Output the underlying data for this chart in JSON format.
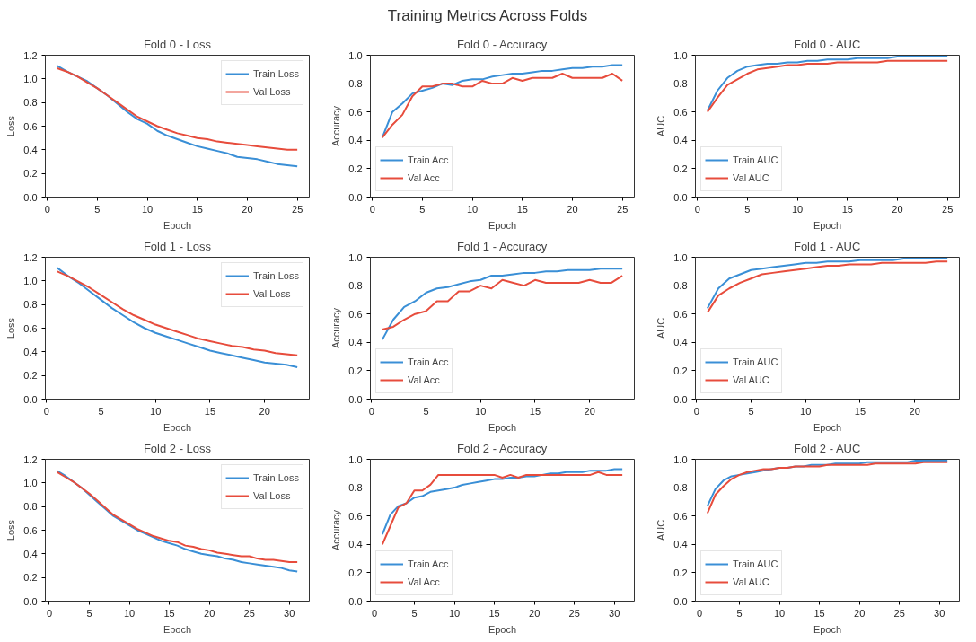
{
  "chart_data": [
    {
      "type": "other",
      "title": "Training Metrics Across Folds"
    },
    {
      "type": "line",
      "title": "Fold 0 - Loss",
      "xlabel": "Epoch",
      "ylabel": "Loss",
      "legend": "top right",
      "x": [
        1,
        2,
        3,
        4,
        5,
        6,
        7,
        8,
        9,
        10,
        11,
        12,
        13,
        14,
        15,
        16,
        17,
        18,
        19,
        20,
        21,
        22,
        23,
        24,
        25
      ],
      "xlim": [
        -0.2,
        26.2
      ],
      "xticks": [
        0,
        5,
        10,
        15,
        20,
        25
      ],
      "ylim": [
        0,
        1.2
      ],
      "yticks": [
        {
          "value": 0,
          "label": "0.0"
        },
        {
          "value": 0.2,
          "label": "0.2"
        },
        {
          "value": 0.4,
          "label": "0.4"
        },
        {
          "value": 0.6,
          "label": "0.6"
        },
        {
          "value": 0.8,
          "label": "0.8"
        },
        {
          "value": 1,
          "label": "1.0"
        },
        {
          "value": 1.2,
          "label": "1.2"
        }
      ],
      "series": [
        {
          "name": "Train Loss",
          "color": "#3a8fd6",
          "values": [
            1.11,
            1.06,
            1.02,
            0.98,
            0.92,
            0.86,
            0.79,
            0.72,
            0.66,
            0.62,
            0.56,
            0.52,
            0.49,
            0.46,
            0.43,
            0.41,
            0.39,
            0.37,
            0.34,
            0.33,
            0.32,
            0.3,
            0.28,
            0.27,
            0.26
          ]
        },
        {
          "name": "Val Loss",
          "color": "#e74c3c",
          "values": [
            1.09,
            1.06,
            1.02,
            0.97,
            0.92,
            0.86,
            0.8,
            0.74,
            0.68,
            0.64,
            0.6,
            0.57,
            0.54,
            0.52,
            0.5,
            0.49,
            0.47,
            0.46,
            0.45,
            0.44,
            0.43,
            0.42,
            0.41,
            0.4,
            0.4
          ]
        }
      ]
    },
    {
      "type": "line",
      "title": "Fold 0 - Accuracy",
      "xlabel": "Epoch",
      "ylabel": "Accuracy",
      "legend": "bottom left",
      "x": [
        1,
        2,
        3,
        4,
        5,
        6,
        7,
        8,
        9,
        10,
        11,
        12,
        13,
        14,
        15,
        16,
        17,
        18,
        19,
        20,
        21,
        22,
        23,
        24,
        25
      ],
      "xlim": [
        -0.2,
        26.2
      ],
      "xticks": [
        0,
        5,
        10,
        15,
        20,
        25
      ],
      "ylim": [
        0,
        1
      ],
      "yticks": [
        {
          "value": 0,
          "label": "0.0"
        },
        {
          "value": 0.2,
          "label": "0.2"
        },
        {
          "value": 0.4,
          "label": "0.4"
        },
        {
          "value": 0.6,
          "label": "0.6"
        },
        {
          "value": 0.8,
          "label": "0.8"
        },
        {
          "value": 1,
          "label": "1.0"
        }
      ],
      "series": [
        {
          "name": "Train Acc",
          "color": "#3a8fd6",
          "values": [
            0.42,
            0.6,
            0.66,
            0.73,
            0.75,
            0.77,
            0.8,
            0.79,
            0.82,
            0.83,
            0.83,
            0.85,
            0.86,
            0.87,
            0.87,
            0.88,
            0.89,
            0.89,
            0.9,
            0.91,
            0.91,
            0.92,
            0.92,
            0.93,
            0.93
          ]
        },
        {
          "name": "Val Acc",
          "color": "#e74c3c",
          "values": [
            0.42,
            0.51,
            0.58,
            0.71,
            0.78,
            0.78,
            0.8,
            0.8,
            0.78,
            0.78,
            0.82,
            0.8,
            0.8,
            0.84,
            0.82,
            0.84,
            0.84,
            0.84,
            0.87,
            0.84,
            0.84,
            0.84,
            0.84,
            0.87,
            0.82
          ]
        }
      ]
    },
    {
      "type": "line",
      "title": "Fold 0 - AUC",
      "xlabel": "Epoch",
      "ylabel": "AUC",
      "legend": "bottom left",
      "x": [
        1,
        2,
        3,
        4,
        5,
        6,
        7,
        8,
        9,
        10,
        11,
        12,
        13,
        14,
        15,
        16,
        17,
        18,
        19,
        20,
        21,
        22,
        23,
        24,
        25
      ],
      "xlim": [
        -0.2,
        26.2
      ],
      "xticks": [
        0,
        5,
        10,
        15,
        20,
        25
      ],
      "ylim": [
        0,
        1
      ],
      "yticks": [
        {
          "value": 0,
          "label": "0.0"
        },
        {
          "value": 0.2,
          "label": "0.2"
        },
        {
          "value": 0.4,
          "label": "0.4"
        },
        {
          "value": 0.6,
          "label": "0.6"
        },
        {
          "value": 0.8,
          "label": "0.8"
        },
        {
          "value": 1,
          "label": "1.0"
        }
      ],
      "series": [
        {
          "name": "Train AUC",
          "color": "#3a8fd6",
          "values": [
            0.61,
            0.75,
            0.84,
            0.89,
            0.92,
            0.93,
            0.94,
            0.94,
            0.95,
            0.95,
            0.96,
            0.96,
            0.97,
            0.97,
            0.97,
            0.98,
            0.98,
            0.98,
            0.98,
            0.99,
            0.99,
            0.99,
            0.99,
            0.99,
            0.99
          ]
        },
        {
          "name": "Val AUC",
          "color": "#e74c3c",
          "values": [
            0.6,
            0.7,
            0.79,
            0.83,
            0.87,
            0.9,
            0.91,
            0.92,
            0.93,
            0.93,
            0.94,
            0.94,
            0.94,
            0.95,
            0.95,
            0.95,
            0.95,
            0.95,
            0.96,
            0.96,
            0.96,
            0.96,
            0.96,
            0.96,
            0.96
          ]
        }
      ]
    },
    {
      "type": "line",
      "title": "Fold 1 - Loss",
      "xlabel": "Epoch",
      "ylabel": "Loss",
      "legend": "top right",
      "x": [
        1,
        2,
        3,
        4,
        5,
        6,
        7,
        8,
        9,
        10,
        11,
        12,
        13,
        14,
        15,
        16,
        17,
        18,
        19,
        20,
        21,
        22,
        23
      ],
      "xlim": [
        -0.1,
        24.1
      ],
      "xticks": [
        0,
        5,
        10,
        15,
        20
      ],
      "ylim": [
        0,
        1.2
      ],
      "yticks": [
        {
          "value": 0,
          "label": "0.0"
        },
        {
          "value": 0.2,
          "label": "0.2"
        },
        {
          "value": 0.4,
          "label": "0.4"
        },
        {
          "value": 0.6,
          "label": "0.6"
        },
        {
          "value": 0.8,
          "label": "0.8"
        },
        {
          "value": 1,
          "label": "1.0"
        },
        {
          "value": 1.2,
          "label": "1.2"
        }
      ],
      "series": [
        {
          "name": "Train Loss",
          "color": "#3a8fd6",
          "values": [
            1.11,
            1.04,
            0.98,
            0.91,
            0.84,
            0.77,
            0.71,
            0.65,
            0.6,
            0.56,
            0.53,
            0.5,
            0.47,
            0.44,
            0.41,
            0.39,
            0.37,
            0.35,
            0.33,
            0.31,
            0.3,
            0.29,
            0.27
          ]
        },
        {
          "name": "Val Loss",
          "color": "#e74c3c",
          "values": [
            1.08,
            1.04,
            0.99,
            0.94,
            0.88,
            0.82,
            0.76,
            0.71,
            0.67,
            0.63,
            0.6,
            0.57,
            0.54,
            0.51,
            0.49,
            0.47,
            0.45,
            0.44,
            0.42,
            0.41,
            0.39,
            0.38,
            0.37
          ]
        }
      ]
    },
    {
      "type": "line",
      "title": "Fold 1 - Accuracy",
      "xlabel": "Epoch",
      "ylabel": "Accuracy",
      "legend": "bottom left",
      "x": [
        1,
        2,
        3,
        4,
        5,
        6,
        7,
        8,
        9,
        10,
        11,
        12,
        13,
        14,
        15,
        16,
        17,
        18,
        19,
        20,
        21,
        22,
        23
      ],
      "xlim": [
        -0.1,
        24.1
      ],
      "xticks": [
        0,
        5,
        10,
        15,
        20
      ],
      "ylim": [
        0,
        1
      ],
      "yticks": [
        {
          "value": 0,
          "label": "0.0"
        },
        {
          "value": 0.2,
          "label": "0.2"
        },
        {
          "value": 0.4,
          "label": "0.4"
        },
        {
          "value": 0.6,
          "label": "0.6"
        },
        {
          "value": 0.8,
          "label": "0.8"
        },
        {
          "value": 1,
          "label": "1.0"
        }
      ],
      "series": [
        {
          "name": "Train Acc",
          "color": "#3a8fd6",
          "values": [
            0.42,
            0.56,
            0.65,
            0.69,
            0.75,
            0.78,
            0.79,
            0.81,
            0.83,
            0.84,
            0.87,
            0.87,
            0.88,
            0.89,
            0.89,
            0.9,
            0.9,
            0.91,
            0.91,
            0.91,
            0.92,
            0.92,
            0.92
          ]
        },
        {
          "name": "Val Acc",
          "color": "#e74c3c",
          "values": [
            0.49,
            0.51,
            0.56,
            0.6,
            0.62,
            0.69,
            0.69,
            0.76,
            0.76,
            0.8,
            0.78,
            0.84,
            0.82,
            0.8,
            0.84,
            0.82,
            0.82,
            0.82,
            0.82,
            0.84,
            0.82,
            0.82,
            0.87
          ]
        }
      ]
    },
    {
      "type": "line",
      "title": "Fold 1 - AUC",
      "xlabel": "Epoch",
      "ylabel": "AUC",
      "legend": "bottom left",
      "x": [
        1,
        2,
        3,
        4,
        5,
        6,
        7,
        8,
        9,
        10,
        11,
        12,
        13,
        14,
        15,
        16,
        17,
        18,
        19,
        20,
        21,
        22,
        23
      ],
      "xlim": [
        -0.1,
        24.1
      ],
      "xticks": [
        0,
        5,
        10,
        15,
        20
      ],
      "ylim": [
        0,
        1
      ],
      "yticks": [
        {
          "value": 0,
          "label": "0.0"
        },
        {
          "value": 0.2,
          "label": "0.2"
        },
        {
          "value": 0.4,
          "label": "0.4"
        },
        {
          "value": 0.6,
          "label": "0.6"
        },
        {
          "value": 0.8,
          "label": "0.8"
        },
        {
          "value": 1,
          "label": "1.0"
        }
      ],
      "series": [
        {
          "name": "Train AUC",
          "color": "#3a8fd6",
          "values": [
            0.64,
            0.78,
            0.85,
            0.88,
            0.91,
            0.92,
            0.93,
            0.94,
            0.95,
            0.96,
            0.96,
            0.97,
            0.97,
            0.97,
            0.98,
            0.98,
            0.98,
            0.98,
            0.99,
            0.99,
            0.99,
            0.99,
            0.99
          ]
        },
        {
          "name": "Val AUC",
          "color": "#e74c3c",
          "values": [
            0.61,
            0.73,
            0.78,
            0.82,
            0.85,
            0.88,
            0.89,
            0.9,
            0.91,
            0.92,
            0.93,
            0.94,
            0.94,
            0.95,
            0.95,
            0.95,
            0.96,
            0.96,
            0.96,
            0.96,
            0.96,
            0.97,
            0.97
          ]
        }
      ]
    },
    {
      "type": "line",
      "title": "Fold 2 - Loss",
      "xlabel": "Epoch",
      "ylabel": "Loss",
      "legend": "top right",
      "x": [
        1,
        2,
        3,
        4,
        5,
        6,
        7,
        8,
        9,
        10,
        11,
        12,
        13,
        14,
        15,
        16,
        17,
        18,
        19,
        20,
        21,
        22,
        23,
        24,
        25,
        26,
        27,
        28,
        29,
        30,
        31
      ],
      "xlim": [
        -0.5,
        32.5
      ],
      "xticks": [
        0,
        5,
        10,
        15,
        20,
        25,
        30
      ],
      "ylim": [
        0,
        1.2
      ],
      "yticks": [
        {
          "value": 0,
          "label": "0.0"
        },
        {
          "value": 0.2,
          "label": "0.2"
        },
        {
          "value": 0.4,
          "label": "0.4"
        },
        {
          "value": 0.6,
          "label": "0.6"
        },
        {
          "value": 0.8,
          "label": "0.8"
        },
        {
          "value": 1,
          "label": "1.0"
        },
        {
          "value": 1.2,
          "label": "1.2"
        }
      ],
      "series": [
        {
          "name": "Train Loss",
          "color": "#3a8fd6",
          "values": [
            1.1,
            1.06,
            1.01,
            0.96,
            0.9,
            0.84,
            0.78,
            0.72,
            0.68,
            0.64,
            0.6,
            0.57,
            0.54,
            0.51,
            0.49,
            0.47,
            0.44,
            0.42,
            0.4,
            0.39,
            0.38,
            0.36,
            0.35,
            0.33,
            0.32,
            0.31,
            0.3,
            0.29,
            0.28,
            0.26,
            0.25
          ]
        },
        {
          "name": "Val Loss",
          "color": "#e74c3c",
          "values": [
            1.09,
            1.05,
            1.01,
            0.96,
            0.91,
            0.85,
            0.79,
            0.73,
            0.69,
            0.65,
            0.61,
            0.58,
            0.55,
            0.53,
            0.51,
            0.5,
            0.47,
            0.46,
            0.44,
            0.43,
            0.41,
            0.4,
            0.39,
            0.38,
            0.38,
            0.36,
            0.35,
            0.35,
            0.34,
            0.33,
            0.33
          ]
        }
      ]
    },
    {
      "type": "line",
      "title": "Fold 2 - Accuracy",
      "xlabel": "Epoch",
      "ylabel": "Accuracy",
      "legend": "bottom left",
      "x": [
        1,
        2,
        3,
        4,
        5,
        6,
        7,
        8,
        9,
        10,
        11,
        12,
        13,
        14,
        15,
        16,
        17,
        18,
        19,
        20,
        21,
        22,
        23,
        24,
        25,
        26,
        27,
        28,
        29,
        30,
        31
      ],
      "xlim": [
        -0.5,
        32.5
      ],
      "xticks": [
        0,
        5,
        10,
        15,
        20,
        25,
        30
      ],
      "ylim": [
        0,
        1
      ],
      "yticks": [
        {
          "value": 0,
          "label": "0.0"
        },
        {
          "value": 0.2,
          "label": "0.2"
        },
        {
          "value": 0.4,
          "label": "0.4"
        },
        {
          "value": 0.6,
          "label": "0.6"
        },
        {
          "value": 0.8,
          "label": "0.8"
        },
        {
          "value": 1,
          "label": "1.0"
        }
      ],
      "series": [
        {
          "name": "Train Acc",
          "color": "#3a8fd6",
          "values": [
            0.47,
            0.61,
            0.67,
            0.69,
            0.73,
            0.74,
            0.77,
            0.78,
            0.79,
            0.8,
            0.82,
            0.83,
            0.84,
            0.85,
            0.86,
            0.86,
            0.87,
            0.87,
            0.88,
            0.88,
            0.89,
            0.9,
            0.9,
            0.91,
            0.91,
            0.91,
            0.92,
            0.92,
            0.92,
            0.93,
            0.93
          ]
        },
        {
          "name": "Val Acc",
          "color": "#e74c3c",
          "values": [
            0.4,
            0.53,
            0.66,
            0.69,
            0.78,
            0.78,
            0.82,
            0.89,
            0.89,
            0.89,
            0.89,
            0.89,
            0.89,
            0.89,
            0.89,
            0.87,
            0.89,
            0.87,
            0.89,
            0.89,
            0.89,
            0.89,
            0.89,
            0.89,
            0.89,
            0.89,
            0.89,
            0.91,
            0.89,
            0.89,
            0.89
          ]
        }
      ]
    },
    {
      "type": "line",
      "title": "Fold 2 - AUC",
      "xlabel": "Epoch",
      "ylabel": "AUC",
      "legend": "bottom left",
      "x": [
        1,
        2,
        3,
        4,
        5,
        6,
        7,
        8,
        9,
        10,
        11,
        12,
        13,
        14,
        15,
        16,
        17,
        18,
        19,
        20,
        21,
        22,
        23,
        24,
        25,
        26,
        27,
        28,
        29,
        30,
        31
      ],
      "xlim": [
        -0.5,
        32.5
      ],
      "xticks": [
        0,
        5,
        10,
        15,
        20,
        25,
        30
      ],
      "ylim": [
        0,
        1
      ],
      "yticks": [
        {
          "value": 0,
          "label": "0.0"
        },
        {
          "value": 0.2,
          "label": "0.2"
        },
        {
          "value": 0.4,
          "label": "0.4"
        },
        {
          "value": 0.6,
          "label": "0.6"
        },
        {
          "value": 0.8,
          "label": "0.8"
        },
        {
          "value": 1,
          "label": "1.0"
        }
      ],
      "series": [
        {
          "name": "Train AUC",
          "color": "#3a8fd6",
          "values": [
            0.67,
            0.79,
            0.85,
            0.88,
            0.89,
            0.9,
            0.91,
            0.92,
            0.93,
            0.94,
            0.94,
            0.95,
            0.95,
            0.96,
            0.96,
            0.96,
            0.97,
            0.97,
            0.97,
            0.97,
            0.98,
            0.98,
            0.98,
            0.98,
            0.98,
            0.98,
            0.99,
            0.99,
            0.99,
            0.99,
            0.99
          ]
        },
        {
          "name": "Val AUC",
          "color": "#e74c3c",
          "values": [
            0.62,
            0.75,
            0.81,
            0.86,
            0.89,
            0.91,
            0.92,
            0.93,
            0.93,
            0.94,
            0.94,
            0.95,
            0.95,
            0.95,
            0.95,
            0.96,
            0.96,
            0.96,
            0.96,
            0.96,
            0.96,
            0.97,
            0.97,
            0.97,
            0.97,
            0.97,
            0.97,
            0.98,
            0.98,
            0.98,
            0.98
          ]
        }
      ]
    }
  ]
}
